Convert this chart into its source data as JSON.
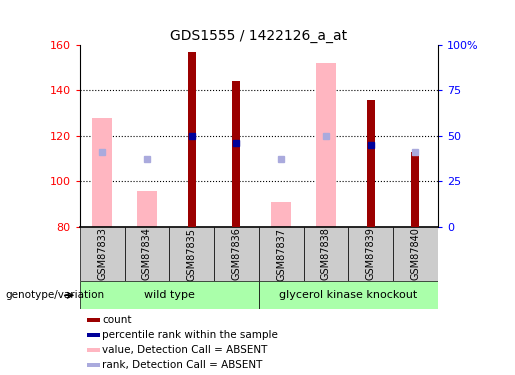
{
  "title": "GDS1555 / 1422126_a_at",
  "samples": [
    "GSM87833",
    "GSM87834",
    "GSM87835",
    "GSM87836",
    "GSM87837",
    "GSM87838",
    "GSM87839",
    "GSM87840"
  ],
  "count_values": [
    null,
    null,
    157,
    144,
    null,
    null,
    136,
    113
  ],
  "percentile_rank": [
    null,
    null,
    120,
    117,
    null,
    null,
    116,
    null
  ],
  "pink_bar_values": [
    128,
    96,
    null,
    null,
    91,
    152,
    null,
    null
  ],
  "blue_square_values": [
    113,
    110,
    null,
    null,
    110,
    120,
    null,
    113
  ],
  "ylim": [
    80,
    160
  ],
  "yticks": [
    80,
    100,
    120,
    140,
    160
  ],
  "right_yticks": [
    0,
    25,
    50,
    75,
    100
  ],
  "right_yticklabels": [
    "0",
    "25",
    "50",
    "75",
    "100%"
  ],
  "count_color": "#9b0000",
  "pink_color": "#ffb6c1",
  "blue_square_color": "#aaaadd",
  "percentile_color": "#000099",
  "legend_items": [
    {
      "label": "count",
      "color": "#9b0000"
    },
    {
      "label": "percentile rank within the sample",
      "color": "#000099"
    },
    {
      "label": "value, Detection Call = ABSENT",
      "color": "#ffb6c1"
    },
    {
      "label": "rank, Detection Call = ABSENT",
      "color": "#aaaadd"
    }
  ]
}
